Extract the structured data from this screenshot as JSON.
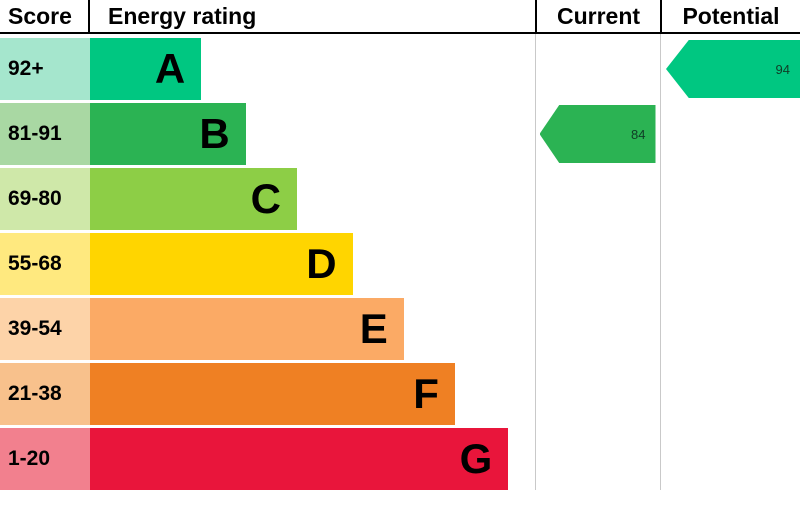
{
  "header": {
    "score": "Score",
    "energy_rating": "Energy rating",
    "current": "Current",
    "potential": "Potential"
  },
  "bands": [
    {
      "letter": "A",
      "score": "92+",
      "color": "#00c781",
      "tint": "#a5e6cd",
      "bar_width": "25%"
    },
    {
      "letter": "B",
      "score": "81-91",
      "color": "#2bb353",
      "tint": "#a9d8a3",
      "bar_width": "35%"
    },
    {
      "letter": "C",
      "score": "69-80",
      "color": "#8dce46",
      "tint": "#cfe8a9",
      "bar_width": "46.5%"
    },
    {
      "letter": "D",
      "score": "55-68",
      "color": "#ffd500",
      "tint": "#ffe97f",
      "bar_width": "59%"
    },
    {
      "letter": "E",
      "score": "39-54",
      "color": "#fbaa65",
      "tint": "#fdd3a8",
      "bar_width": "70.5%"
    },
    {
      "letter": "F",
      "score": "21-38",
      "color": "#ef8023",
      "tint": "#f8c18c",
      "bar_width": "82%"
    },
    {
      "letter": "G",
      "score": "1-20",
      "color": "#e9153b",
      "tint": "#f2808e",
      "bar_width": "94%"
    }
  ],
  "current": {
    "value": "84",
    "band": "B",
    "color": "#2bb353"
  },
  "potential": {
    "value": "94",
    "band": "A",
    "color": "#00c781"
  },
  "chart_data": {
    "type": "bar",
    "title": "Energy rating",
    "categories": [
      "A",
      "B",
      "C",
      "D",
      "E",
      "F",
      "G"
    ],
    "score_ranges": [
      "92+",
      "81-91",
      "69-80",
      "55-68",
      "39-54",
      "21-38",
      "1-20"
    ],
    "band_colors": [
      "#00c781",
      "#2bb353",
      "#8dce46",
      "#ffd500",
      "#fbaa65",
      "#ef8023",
      "#e9153b"
    ],
    "bar_relative_widths": [
      25,
      35,
      46.5,
      59,
      70.5,
      82,
      94
    ],
    "current": {
      "value": 84,
      "band": "B"
    },
    "potential": {
      "value": 94,
      "band": "A"
    },
    "columns": [
      "Score",
      "Energy rating",
      "Current",
      "Potential"
    ],
    "legend_position": "none",
    "grid": false
  }
}
